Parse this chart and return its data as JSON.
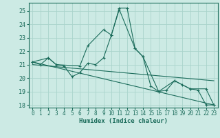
{
  "title": "",
  "xlabel": "Humidex (Indice chaleur)",
  "bg_color": "#cceae4",
  "grid_color": "#aad4cc",
  "line_color": "#1a6b5a",
  "xlim": [
    -0.5,
    23.5
  ],
  "ylim": [
    17.8,
    25.6
  ],
  "yticks": [
    18,
    19,
    20,
    21,
    22,
    23,
    24,
    25
  ],
  "xticks": [
    0,
    1,
    2,
    3,
    4,
    5,
    6,
    7,
    8,
    9,
    10,
    11,
    12,
    13,
    14,
    15,
    16,
    17,
    18,
    19,
    20,
    21,
    22,
    23
  ],
  "series1_x": [
    0,
    1,
    2,
    3,
    4,
    5,
    6,
    7,
    8,
    9,
    10,
    11,
    12,
    13,
    14,
    15,
    16,
    17,
    18,
    19,
    20,
    21,
    22,
    23
  ],
  "series1_y": [
    21.2,
    21.0,
    21.5,
    21.0,
    20.9,
    20.1,
    20.4,
    21.1,
    21.0,
    21.5,
    23.2,
    25.2,
    25.2,
    22.2,
    21.6,
    19.4,
    19.0,
    19.1,
    19.8,
    19.5,
    19.2,
    19.1,
    18.0,
    18.0
  ],
  "series2_x": [
    0,
    2,
    3,
    6,
    7,
    9,
    10,
    11,
    13,
    14,
    16,
    18,
    20,
    22,
    23
  ],
  "series2_y": [
    21.2,
    21.5,
    21.0,
    20.9,
    22.4,
    23.6,
    23.2,
    25.1,
    22.2,
    21.6,
    19.0,
    19.8,
    19.2,
    19.2,
    18.0
  ],
  "series3_x": [
    0,
    23
  ],
  "series3_y": [
    21.2,
    18.0
  ],
  "series4_x": [
    0,
    23
  ],
  "series4_y": [
    21.0,
    19.8
  ]
}
